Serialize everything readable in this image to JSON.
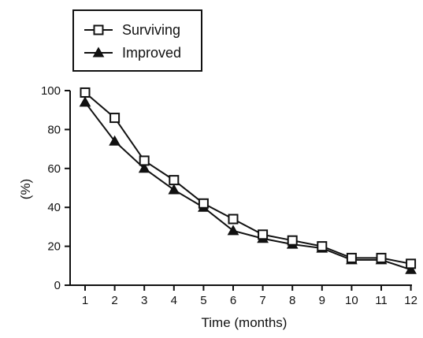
{
  "chart_data": {
    "type": "line",
    "title": "",
    "xlabel": "Time (months)",
    "ylabel": "(%)",
    "x": [
      1,
      2,
      3,
      4,
      5,
      6,
      7,
      8,
      9,
      10,
      11,
      12
    ],
    "xlim": [
      1,
      12
    ],
    "ylim": [
      0,
      100
    ],
    "yticks": [
      0,
      20,
      40,
      60,
      80,
      100
    ],
    "grid": false,
    "legend_position": "top-left",
    "series": [
      {
        "name": "Surviving",
        "marker": "open-square",
        "values": [
          99,
          86,
          64,
          54,
          42,
          34,
          26,
          23,
          20,
          14,
          14,
          11
        ]
      },
      {
        "name": "Improved",
        "marker": "filled-triangle",
        "values": [
          94,
          74,
          60,
          49,
          40,
          28,
          24,
          21,
          19,
          13,
          13,
          8
        ]
      }
    ]
  }
}
